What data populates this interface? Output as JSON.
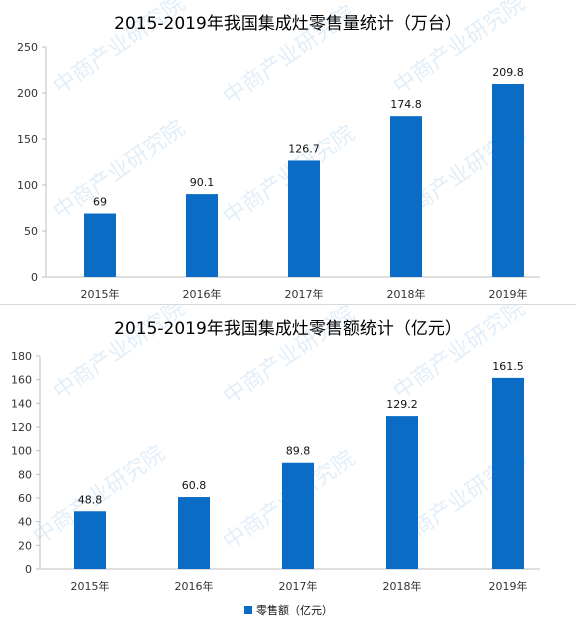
{
  "chart_data": [
    {
      "type": "bar",
      "title": "2015-2019年我国集成灶零售量统计（万台）",
      "categories": [
        "2015年",
        "2016年",
        "2017年",
        "2018年",
        "2019年"
      ],
      "values": [
        69,
        90.1,
        126.7,
        174.8,
        209.8
      ],
      "ylim": [
        0,
        250
      ],
      "yticks": [
        0,
        50,
        100,
        150,
        200,
        250
      ],
      "grid": false,
      "color": "#0a6cc4"
    },
    {
      "type": "bar",
      "title": "2015-2019年我国集成灶零售额统计（亿元）",
      "categories": [
        "2015年",
        "2016年",
        "2017年",
        "2018年",
        "2019年"
      ],
      "values": [
        48.8,
        60.8,
        89.8,
        129.2,
        161.5
      ],
      "ylim": [
        0,
        180
      ],
      "yticks": [
        0,
        20,
        40,
        60,
        80,
        100,
        120,
        140,
        160,
        180
      ],
      "grid": false,
      "color": "#0a6cc4",
      "legend": "零售额（亿元）",
      "legend_position": "bottom"
    }
  ],
  "watermark": "中商产业研究院"
}
